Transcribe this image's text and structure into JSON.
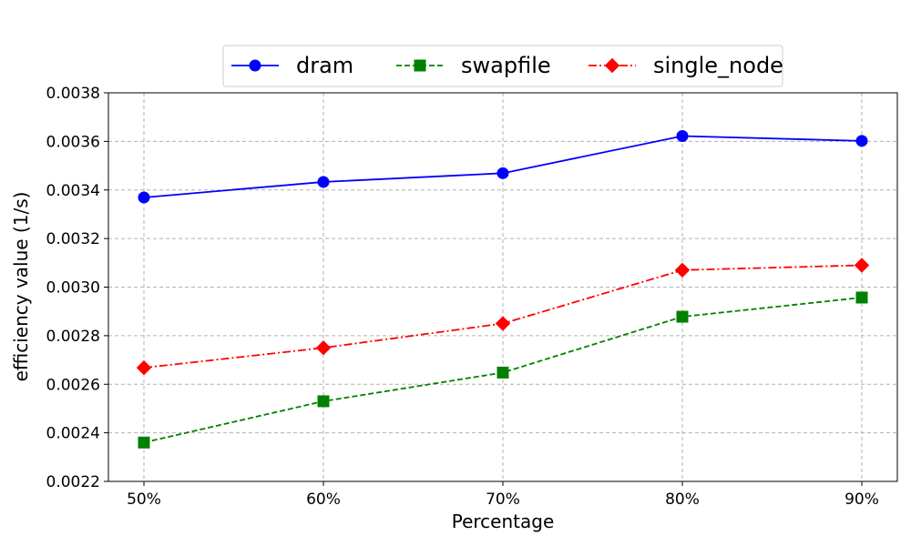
{
  "chart_data": {
    "type": "line",
    "categories": [
      "50%",
      "60%",
      "70%",
      "80%",
      "90%"
    ],
    "xlabel": "Percentage",
    "ylabel": "efficiency value (1/s)",
    "ylim": [
      0.0022,
      0.0038
    ],
    "yticks": [
      "0.0022",
      "0.0024",
      "0.0026",
      "0.0028",
      "0.0030",
      "0.0032",
      "0.0034",
      "0.0036",
      "0.0038"
    ],
    "grid": true,
    "legend_position": "top-center",
    "series": [
      {
        "name": "dram",
        "values": [
          0.003369,
          0.003433,
          0.003469,
          0.003622,
          0.003602
        ],
        "color": "#0000ff",
        "marker": "circle",
        "dash": "solid"
      },
      {
        "name": "swapfile",
        "values": [
          0.00236,
          0.00253,
          0.002648,
          0.002878,
          0.002957
        ],
        "color": "#008000",
        "marker": "square",
        "dash": "dashed"
      },
      {
        "name": "single_node",
        "values": [
          0.002668,
          0.00275,
          0.00285,
          0.00307,
          0.00309
        ],
        "color": "#ff0000",
        "marker": "diamond",
        "dash": "dashdot"
      }
    ]
  }
}
